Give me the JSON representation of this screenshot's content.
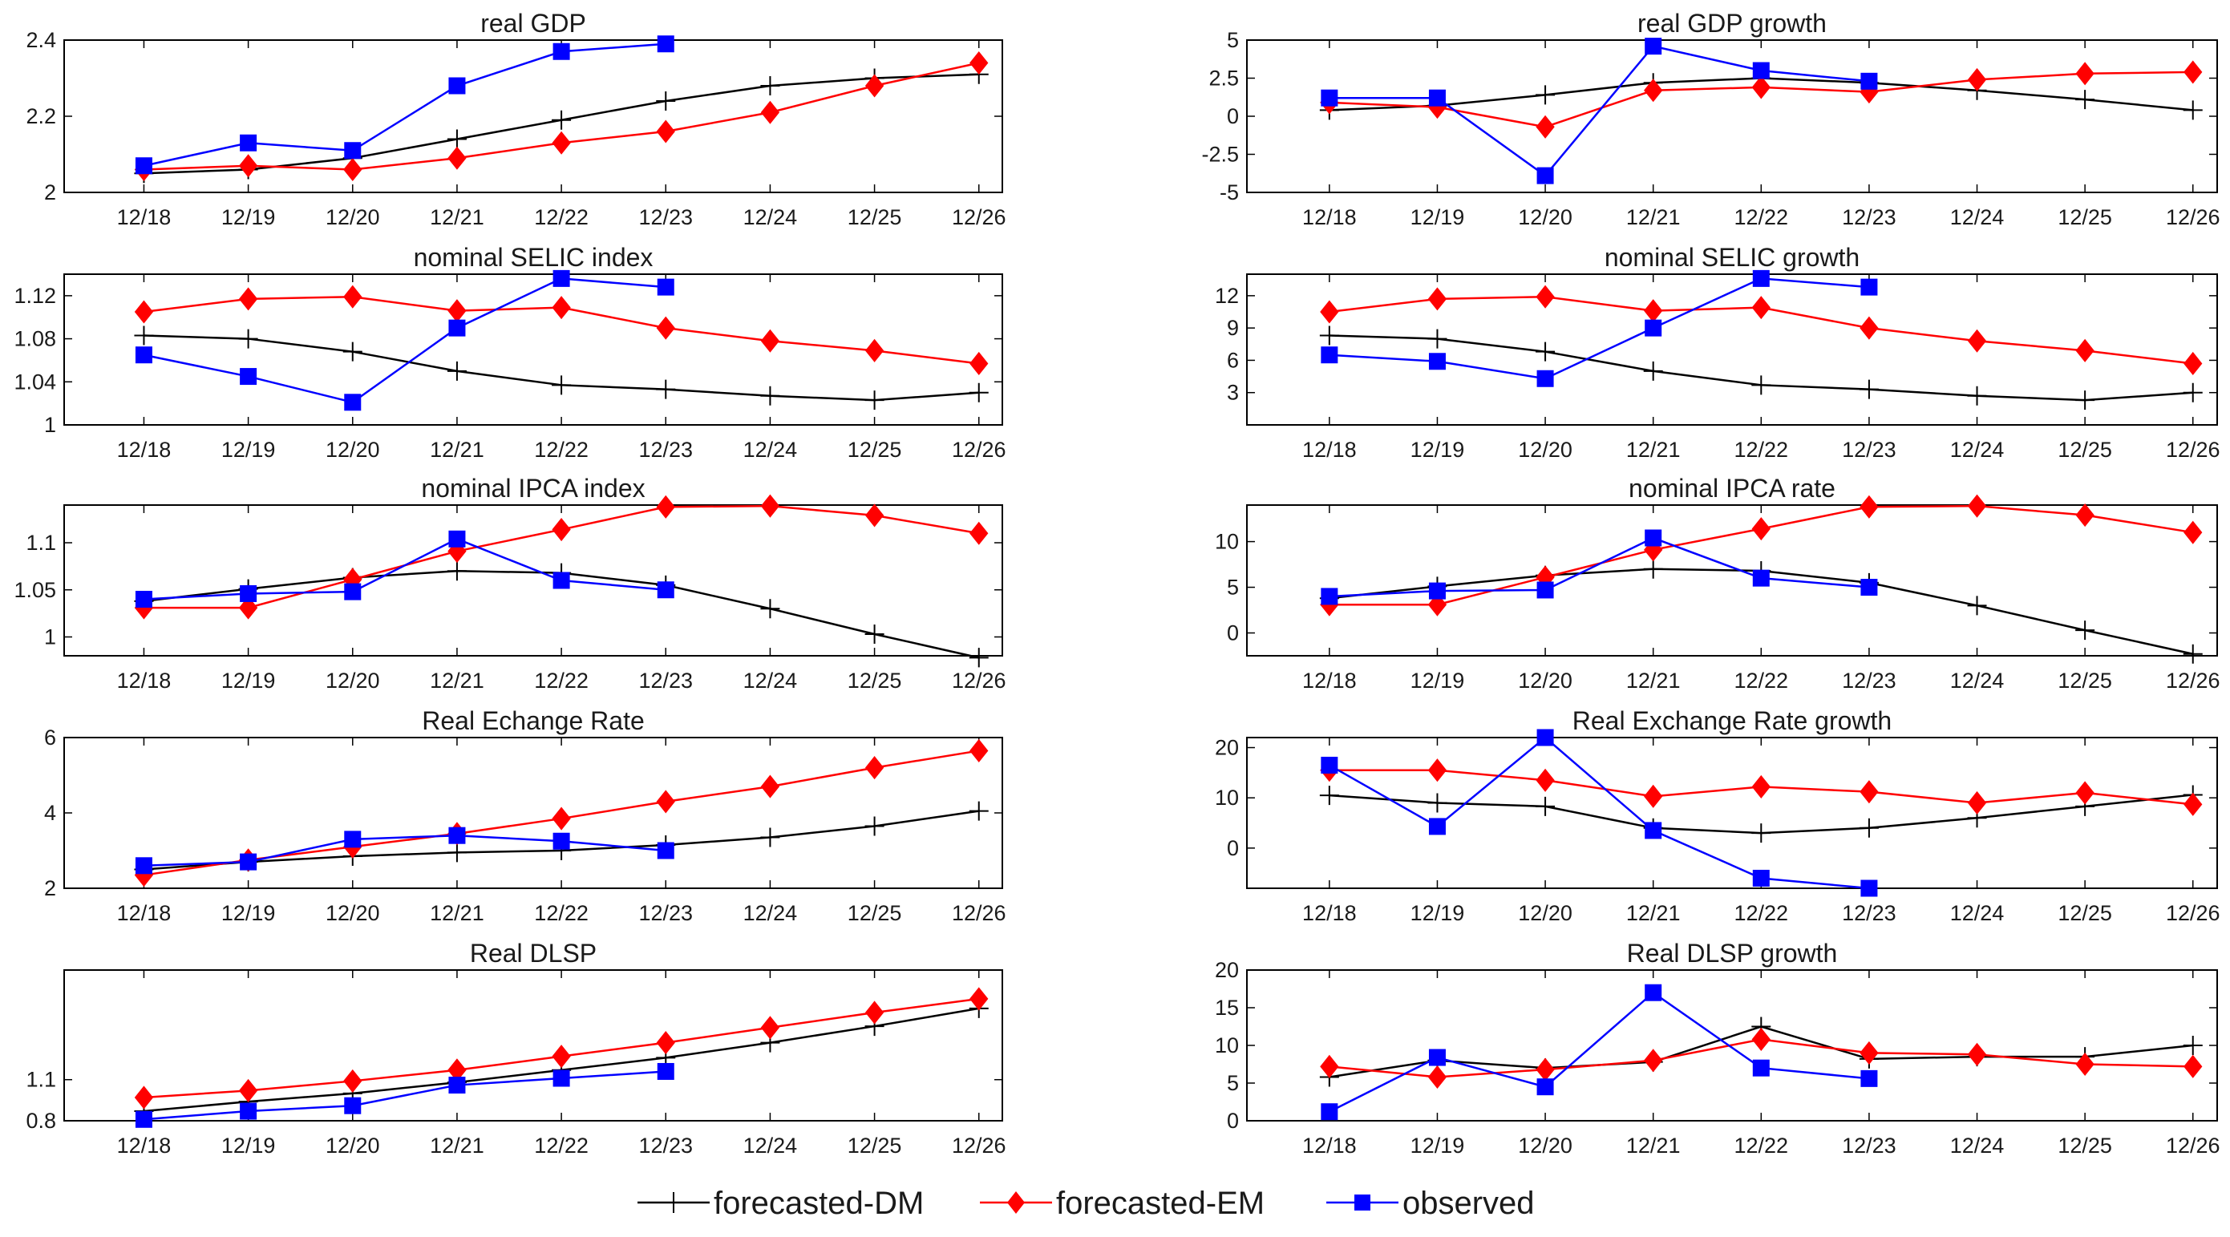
{
  "x_categories": [
    "12/18",
    "12/19",
    "12/20",
    "12/21",
    "12/22",
    "12/23",
    "12/24",
    "12/25",
    "12/26"
  ],
  "series_colors": {
    "forecasted-DM": "#000000",
    "forecasted-EM": "#ff0000",
    "observed": "#0000ff"
  },
  "legend": [
    "forecasted-DM",
    "forecasted-EM",
    "observed"
  ],
  "chart_data": [
    {
      "type": "line",
      "title": "real GDP",
      "ylim": [
        2,
        2.4
      ],
      "yticks": [
        2,
        2.2,
        2.4
      ],
      "ytick_labels": [
        "2",
        "2.2",
        "2.4"
      ],
      "series": [
        {
          "name": "forecasted-DM",
          "values": [
            2.05,
            2.06,
            2.09,
            2.14,
            2.19,
            2.24,
            2.28,
            2.3,
            2.31
          ]
        },
        {
          "name": "forecasted-EM",
          "values": [
            2.06,
            2.07,
            2.06,
            2.09,
            2.13,
            2.16,
            2.21,
            2.28,
            2.34
          ]
        },
        {
          "name": "observed",
          "values": [
            2.07,
            2.13,
            2.11,
            2.28,
            2.37,
            2.39,
            null,
            null,
            null
          ]
        }
      ]
    },
    {
      "type": "line",
      "title": "real GDP growth",
      "ylim": [
        -5,
        5
      ],
      "yticks": [
        -5,
        -2.5,
        0,
        2.5,
        5
      ],
      "ytick_labels": [
        "-5",
        "-2.5",
        "0",
        "2.5",
        "5"
      ],
      "series": [
        {
          "name": "forecasted-DM",
          "values": [
            0.4,
            0.7,
            1.4,
            2.2,
            2.5,
            2.2,
            1.7,
            1.1,
            0.4
          ]
        },
        {
          "name": "forecasted-EM",
          "values": [
            0.9,
            0.6,
            -0.7,
            1.7,
            1.9,
            1.6,
            2.4,
            2.8,
            2.9
          ]
        },
        {
          "name": "observed",
          "values": [
            1.2,
            1.2,
            -3.9,
            4.6,
            3.0,
            2.3,
            null,
            null,
            null
          ]
        }
      ]
    },
    {
      "type": "line",
      "title": "nominal SELIC index",
      "ylim": [
        1,
        1.14
      ],
      "yticks": [
        1,
        1.04,
        1.08,
        1.12
      ],
      "ytick_labels": [
        "1",
        "1.04",
        "1.08",
        "1.12"
      ],
      "series": [
        {
          "name": "forecasted-DM",
          "values": [
            1.083,
            1.08,
            1.068,
            1.05,
            1.037,
            1.033,
            1.027,
            1.023,
            1.03
          ]
        },
        {
          "name": "forecasted-EM",
          "values": [
            1.105,
            1.117,
            1.119,
            1.106,
            1.109,
            1.09,
            1.078,
            1.069,
            1.057
          ]
        },
        {
          "name": "observed",
          "values": [
            1.065,
            1.045,
            1.021,
            1.09,
            1.136,
            1.128,
            null,
            null,
            null
          ]
        }
      ]
    },
    {
      "type": "line",
      "title": "nominal SELIC growth",
      "ylim": [
        0,
        14
      ],
      "yticks": [
        3,
        6,
        9,
        12
      ],
      "ytick_labels": [
        "3",
        "6",
        "9",
        "12"
      ],
      "series": [
        {
          "name": "forecasted-DM",
          "values": [
            8.3,
            8.0,
            6.8,
            5.0,
            3.7,
            3.3,
            2.7,
            2.3,
            3.0
          ]
        },
        {
          "name": "forecasted-EM",
          "values": [
            10.5,
            11.7,
            11.9,
            10.6,
            10.9,
            9.0,
            7.8,
            6.9,
            5.7
          ]
        },
        {
          "name": "observed",
          "values": [
            6.5,
            5.9,
            4.3,
            9.0,
            13.6,
            12.8,
            null,
            null,
            null
          ]
        }
      ]
    },
    {
      "type": "line",
      "title": "nominal IPCA index",
      "ylim": [
        0.98,
        1.14
      ],
      "yticks": [
        1,
        1.05,
        1.1
      ],
      "ytick_labels": [
        "1",
        "1.05",
        "1.1"
      ],
      "series": [
        {
          "name": "forecasted-DM",
          "values": [
            1.038,
            1.051,
            1.063,
            1.07,
            1.068,
            1.055,
            1.03,
            1.003,
            0.978
          ]
        },
        {
          "name": "forecasted-EM",
          "values": [
            1.031,
            1.031,
            1.061,
            1.091,
            1.114,
            1.138,
            1.139,
            1.129,
            1.11
          ]
        },
        {
          "name": "observed",
          "values": [
            1.04,
            1.046,
            1.048,
            1.104,
            1.06,
            1.05,
            null,
            null,
            null
          ]
        }
      ]
    },
    {
      "type": "line",
      "title": "nominal IPCA rate",
      "ylim": [
        -2.5,
        14
      ],
      "yticks": [
        0,
        5,
        10
      ],
      "ytick_labels": [
        "0",
        "5",
        "10"
      ],
      "series": [
        {
          "name": "forecasted-DM",
          "values": [
            3.8,
            5.1,
            6.3,
            7.0,
            6.8,
            5.5,
            3.0,
            0.3,
            -2.3
          ]
        },
        {
          "name": "forecasted-EM",
          "values": [
            3.1,
            3.1,
            6.1,
            9.1,
            11.4,
            13.8,
            13.9,
            12.9,
            11.0
          ]
        },
        {
          "name": "observed",
          "values": [
            4.0,
            4.6,
            4.7,
            10.4,
            6.0,
            5.0,
            null,
            null,
            null
          ]
        }
      ]
    },
    {
      "type": "line",
      "title": "Real Echange Rate",
      "ylim": [
        2,
        6
      ],
      "yticks": [
        2,
        4,
        6
      ],
      "ytick_labels": [
        "2",
        "4",
        "6"
      ],
      "series": [
        {
          "name": "forecasted-DM",
          "values": [
            2.5,
            2.7,
            2.85,
            2.95,
            3.0,
            3.15,
            3.35,
            3.65,
            4.05
          ]
        },
        {
          "name": "forecasted-EM",
          "values": [
            2.35,
            2.75,
            3.1,
            3.45,
            3.85,
            4.3,
            4.7,
            5.2,
            5.65
          ]
        },
        {
          "name": "observed",
          "values": [
            2.6,
            2.7,
            3.3,
            3.4,
            3.25,
            3.0,
            null,
            null,
            null
          ]
        }
      ]
    },
    {
      "type": "line",
      "title": "Real Exchange Rate growth",
      "ylim": [
        -8,
        22
      ],
      "yticks": [
        0,
        10,
        20
      ],
      "ytick_labels": [
        "0",
        "10",
        "20"
      ],
      "series": [
        {
          "name": "forecasted-DM",
          "values": [
            10.5,
            9.0,
            8.3,
            4.0,
            3.0,
            4.0,
            6.0,
            8.3,
            10.6
          ]
        },
        {
          "name": "forecasted-EM",
          "values": [
            15.5,
            15.5,
            13.5,
            10.3,
            12.2,
            11.2,
            9.0,
            11.0,
            8.7
          ]
        },
        {
          "name": "observed",
          "values": [
            16.5,
            4.3,
            22.0,
            3.5,
            -6.0,
            -8.0,
            null,
            null,
            null
          ]
        }
      ]
    },
    {
      "type": "line",
      "title": "Real DLSP",
      "ylim": [
        0.8,
        1.9
      ],
      "yticks": [
        0.8,
        1.1
      ],
      "ytick_labels": [
        "0.8",
        "1.1"
      ],
      "series": [
        {
          "name": "forecasted-DM",
          "values": [
            0.87,
            0.94,
            1.0,
            1.08,
            1.17,
            1.26,
            1.37,
            1.49,
            1.62
          ]
        },
        {
          "name": "forecasted-EM",
          "values": [
            0.97,
            1.02,
            1.09,
            1.17,
            1.27,
            1.37,
            1.48,
            1.59,
            1.69
          ]
        },
        {
          "name": "observed",
          "values": [
            0.81,
            0.87,
            0.91,
            1.06,
            1.11,
            1.16,
            null,
            null,
            null
          ]
        }
      ]
    },
    {
      "type": "line",
      "title": "Real DLSP growth",
      "ylim": [
        0,
        20
      ],
      "yticks": [
        0,
        5,
        10,
        15,
        20
      ],
      "ytick_labels": [
        "0",
        "5",
        "10",
        "15",
        "20"
      ],
      "series": [
        {
          "name": "forecasted-DM",
          "values": [
            5.8,
            8.0,
            7.0,
            7.8,
            12.5,
            8.2,
            8.5,
            8.5,
            10.0
          ]
        },
        {
          "name": "forecasted-EM",
          "values": [
            7.2,
            5.8,
            6.8,
            8.0,
            10.8,
            9.0,
            8.8,
            7.5,
            7.2
          ]
        },
        {
          "name": "observed",
          "values": [
            1.2,
            8.4,
            4.5,
            17.0,
            7.0,
            5.6,
            null,
            null,
            null
          ]
        }
      ]
    }
  ]
}
